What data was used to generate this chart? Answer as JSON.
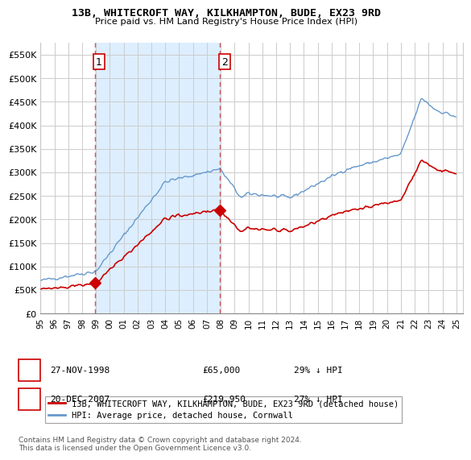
{
  "title": "13B, WHITECROFT WAY, KILKHAMPTON, BUDE, EX23 9RD",
  "subtitle": "Price paid vs. HM Land Registry's House Price Index (HPI)",
  "ylim": [
    0,
    575000
  ],
  "yticks": [
    0,
    50000,
    100000,
    150000,
    200000,
    250000,
    300000,
    350000,
    400000,
    450000,
    500000,
    550000
  ],
  "ytick_labels": [
    "£0",
    "£50K",
    "£100K",
    "£150K",
    "£200K",
    "£250K",
    "£300K",
    "£350K",
    "£400K",
    "£450K",
    "£500K",
    "£550K"
  ],
  "hpi_color": "#6699cc",
  "price_color": "#cc0000",
  "sale1_date_num": 1998.917,
  "sale1_price": 65000,
  "sale1_label": "1",
  "sale2_date_num": 2007.958,
  "sale2_price": 219950,
  "sale2_label": "2",
  "legend_line1": "13B, WHITECROFT WAY, KILKHAMPTON, BUDE, EX23 9RD (detached house)",
  "legend_line2": "HPI: Average price, detached house, Cornwall",
  "table_row1": [
    "1",
    "27-NOV-1998",
    "£65,000",
    "29% ↓ HPI"
  ],
  "table_row2": [
    "2",
    "20-DEC-2007",
    "£219,950",
    "27% ↓ HPI"
  ],
  "footer": "Contains HM Land Registry data © Crown copyright and database right 2024.\nThis data is licensed under the Open Government Licence v3.0.",
  "grid_color": "#cccccc",
  "shade_color": "#ddeeff",
  "background_color": "#ffffff",
  "xtick_labels": [
    "95",
    "96",
    "97",
    "98",
    "99",
    "00",
    "01",
    "02",
    "03",
    "04",
    "05",
    "06",
    "07",
    "08",
    "09",
    "10",
    "11",
    "12",
    "13",
    "14",
    "15",
    "16",
    "17",
    "18",
    "19",
    "20",
    "21",
    "22",
    "23",
    "24",
    "25"
  ]
}
